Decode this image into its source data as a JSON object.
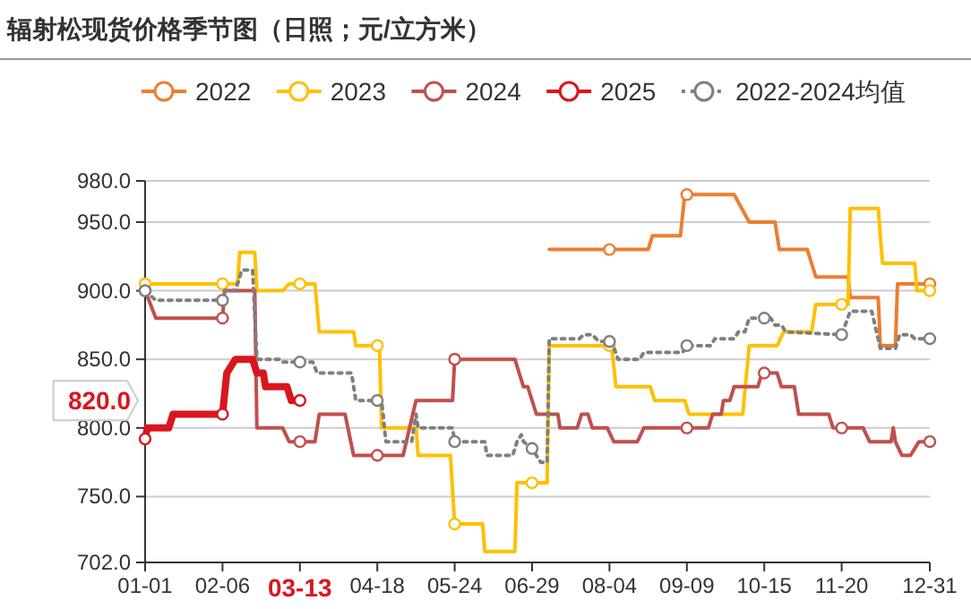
{
  "chart_data": {
    "type": "line",
    "title": "辐射松现货价格季节图（日照；元/立方米）",
    "xlim": [
      "--01-01",
      "--12-31"
    ],
    "xticks": [
      {
        "value": "--01-01",
        "label": "01-01"
      },
      {
        "value": "--02-06",
        "label": "02-06"
      },
      {
        "value": "--03-13",
        "label": null
      },
      {
        "value": "--04-18",
        "label": "04-18"
      },
      {
        "value": "--05-24",
        "label": "05-24"
      },
      {
        "value": "--06-29",
        "label": "06-29"
      },
      {
        "value": "--08-04",
        "label": "08-04"
      },
      {
        "value": "--09-09",
        "label": "09-09"
      },
      {
        "value": "--10-15",
        "label": "10-15"
      },
      {
        "value": "--11-20",
        "label": "11-20"
      },
      {
        "value": "--12-31",
        "label": "12-31"
      }
    ],
    "ylim": [
      702,
      980
    ],
    "yticks": [
      {
        "value": 702,
        "label": "702.0"
      },
      {
        "value": 750,
        "label": "750.0"
      },
      {
        "value": 800,
        "label": "800.0"
      },
      {
        "value": 850,
        "label": "850.0"
      },
      {
        "value": 900,
        "label": "900.0"
      },
      {
        "value": 950,
        "label": "950.0"
      },
      {
        "value": 980,
        "label": "980.0"
      }
    ],
    "grid": "y",
    "legend": "top",
    "annotations": [
      "820.0",
      "03-13"
    ],
    "series": [
      {
        "name": "2022",
        "color": "#ed7d31",
        "line_style": "solid",
        "x": [
          "--07-07",
          "--08-04",
          "--08-22",
          "--08-24",
          "--09-06",
          "--09-08",
          "--09-09",
          "--10-01",
          "--10-08",
          "--10-20",
          "--10-22",
          "--11-04",
          "--11-08",
          "--11-23",
          "--11-24",
          "--12-07",
          "--12-08",
          "--12-15",
          "--12-16",
          "--12-31"
        ],
        "values": [
          930,
          930,
          930,
          940,
          940,
          970,
          970,
          970,
          950,
          950,
          930,
          930,
          910,
          910,
          895,
          895,
          860,
          860,
          905,
          905
        ]
      },
      {
        "name": "2023",
        "color": "#ffc000",
        "line_style": "solid",
        "x": [
          "--01-01",
          "--02-06",
          "--02-13",
          "--02-14",
          "--02-21",
          "--02-22",
          "--03-05",
          "--03-08",
          "--03-13",
          "--03-20",
          "--03-22",
          "--04-07",
          "--04-08",
          "--04-18",
          "--04-19",
          "--04-20",
          "--05-06",
          "--05-07",
          "--05-22",
          "--05-24",
          "--06-06",
          "--06-07",
          "--06-21",
          "--06-22",
          "--06-29",
          "--07-06",
          "--07-07",
          "--08-04",
          "--08-05",
          "--08-07",
          "--08-23",
          "--08-25",
          "--09-08",
          "--09-10",
          "--10-05",
          "--10-08",
          "--10-21",
          "--10-24",
          "--11-06",
          "--11-08",
          "--11-20",
          "--11-23",
          "--11-24",
          "--12-07",
          "--12-09",
          "--12-24",
          "--12-25",
          "--12-31"
        ],
        "values": [
          905,
          905,
          905,
          928,
          928,
          900,
          900,
          905,
          905,
          905,
          870,
          870,
          860,
          860,
          860,
          800,
          800,
          780,
          780,
          730,
          730,
          710,
          710,
          760,
          760,
          760,
          860,
          860,
          860,
          830,
          830,
          820,
          820,
          810,
          810,
          860,
          860,
          870,
          870,
          890,
          890,
          890,
          960,
          960,
          920,
          920,
          900,
          900
        ]
      },
      {
        "name": "2024",
        "color": "#c0504d",
        "line_style": "solid",
        "x": [
          "--01-01",
          "--01-06",
          "--02-06",
          "--02-07",
          "--02-21",
          "--02-22",
          "--03-05",
          "--03-08",
          "--03-13",
          "--03-20",
          "--03-22",
          "--04-03",
          "--04-07",
          "--04-18",
          "--04-30",
          "--05-06",
          "--05-23",
          "--05-24",
          "--06-21",
          "--06-25",
          "--06-27",
          "--07-01",
          "--07-11",
          "--07-12",
          "--07-20",
          "--07-22",
          "--07-25",
          "--07-27",
          "--08-03",
          "--08-06",
          "--08-17",
          "--08-20",
          "--09-09",
          "--09-19",
          "--09-21",
          "--09-25",
          "--09-26",
          "--09-29",
          "--10-01",
          "--10-12",
          "--10-14",
          "--10-15",
          "--10-21",
          "--10-23",
          "--10-29",
          "--10-31",
          "--11-14",
          "--11-16",
          "--11-20",
          "--11-30",
          "--12-03",
          "--12-13",
          "--12-14",
          "--12-15",
          "--12-18",
          "--12-22",
          "--12-26",
          "--12-31"
        ],
        "values": [
          900,
          880,
          880,
          900,
          900,
          800,
          800,
          790,
          790,
          790,
          810,
          810,
          780,
          780,
          780,
          820,
          820,
          850,
          850,
          830,
          830,
          810,
          810,
          800,
          800,
          810,
          810,
          800,
          800,
          790,
          790,
          800,
          800,
          800,
          810,
          810,
          820,
          820,
          830,
          830,
          840,
          840,
          840,
          830,
          830,
          810,
          810,
          800,
          800,
          800,
          790,
          790,
          800,
          790,
          780,
          780,
          790,
          790
        ]
      },
      {
        "name": "2025",
        "color": "#d9161e",
        "line_style": "solid",
        "x": [
          "--01-01",
          "--01-02",
          "--01-12",
          "--01-14",
          "--02-06",
          "--02-08",
          "--02-12",
          "--02-20",
          "--02-22",
          "--02-25",
          "--02-26",
          "--03-07",
          "--03-09",
          "--03-13"
        ],
        "values": [
          792,
          800,
          800,
          810,
          810,
          840,
          850,
          850,
          840,
          840,
          830,
          830,
          820,
          820
        ]
      },
      {
        "name": "2022-2024均值",
        "color": "#7f7f7f",
        "line_style": "dotted",
        "x": [
          "--01-01",
          "--01-06",
          "--02-06",
          "--02-07",
          "--02-12",
          "--02-15",
          "--02-20",
          "--02-22",
          "--03-04",
          "--03-05",
          "--03-13",
          "--03-19",
          "--03-21",
          "--04-06",
          "--04-08",
          "--04-18",
          "--04-20",
          "--04-22",
          "--05-04",
          "--05-06",
          "--05-07",
          "--05-23",
          "--05-24",
          "--06-07",
          "--06-08",
          "--06-20",
          "--06-22",
          "--06-24",
          "--06-25",
          "--06-29",
          "--07-03",
          "--07-06",
          "--07-07",
          "--07-21",
          "--07-23",
          "--07-27",
          "--07-30",
          "--08-04",
          "--08-05",
          "--08-08",
          "--08-18",
          "--08-20",
          "--09-07",
          "--09-09",
          "--09-20",
          "--09-22",
          "--10-01",
          "--10-03",
          "--10-06",
          "--10-08",
          "--10-15",
          "--10-18",
          "--10-20",
          "--10-23",
          "--10-25",
          "--11-20",
          "--11-24",
          "--12-04",
          "--12-08",
          "--12-15",
          "--12-17",
          "--12-22",
          "--12-24",
          "--12-31"
        ],
        "values": [
          900,
          893,
          893,
          900,
          900,
          915,
          915,
          850,
          850,
          848,
          848,
          848,
          840,
          840,
          820,
          820,
          820,
          790,
          790,
          810,
          800,
          800,
          790,
          790,
          780,
          780,
          790,
          795,
          790,
          785,
          775,
          775,
          865,
          865,
          868,
          868,
          863,
          863,
          863,
          850,
          850,
          855,
          855,
          860,
          860,
          865,
          865,
          870,
          870,
          880,
          880,
          880,
          875,
          875,
          870,
          868,
          885,
          885,
          858,
          858,
          868,
          868,
          865,
          865
        ]
      }
    ]
  }
}
